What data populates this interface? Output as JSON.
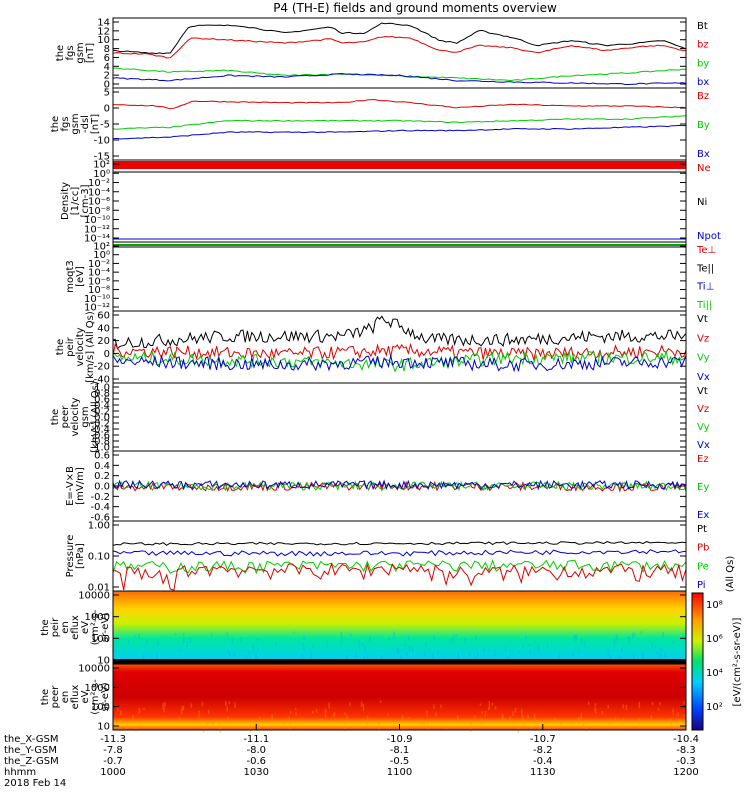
{
  "title": "P4 (TH-E) fields and ground moments overview",
  "colors": {
    "black": "#000000",
    "red": "#dd0000",
    "green": "#00cc00",
    "blue": "#0000cc"
  },
  "panels": [
    {
      "ylabel": [
        "the",
        "fgs",
        "gsm",
        "[nT]"
      ],
      "ticks": [
        "14",
        "12",
        "10",
        "8",
        "6",
        "4",
        "2",
        "0"
      ],
      "legend": [
        {
          "text": "Bt",
          "color": "black"
        },
        {
          "text": "bz",
          "color": "red"
        },
        {
          "text": "by",
          "color": "green"
        },
        {
          "text": "bx",
          "color": "blue"
        }
      ]
    },
    {
      "ylabel": [
        "the",
        "fgs",
        "gsm",
        "-dsl",
        "[nT]"
      ],
      "ticks": [
        "5",
        "0",
        "-5",
        "-10",
        "-15"
      ],
      "legend": [
        {
          "text": "Bz",
          "color": "red"
        },
        {
          "text": "By",
          "color": "green"
        },
        {
          "text": "Bx",
          "color": "blue"
        }
      ]
    },
    {
      "ylabel": [
        "Density",
        "[1/cc]",
        "[cm-3]"
      ],
      "ticks": [
        "10²",
        "10⁰",
        "10⁻²",
        "10⁻⁴",
        "10⁻⁶",
        "10⁻⁸",
        "10⁻¹⁰",
        "10⁻¹²",
        "10⁻¹⁴"
      ],
      "legend": [
        {
          "text": "Ne",
          "color": "red"
        },
        {
          "text": "Ni",
          "color": "black"
        },
        {
          "text": "Npot",
          "color": "blue"
        }
      ]
    },
    {
      "ylabel": [
        "moqt3",
        "[eV]"
      ],
      "ticks": [
        "10²",
        "10⁰",
        "10⁻²",
        "10⁻⁴",
        "10⁻⁶",
        "10⁻⁸",
        "10⁻¹⁰",
        "10⁻¹²"
      ],
      "legend": [
        {
          "text": "Te⊥",
          "color": "red"
        },
        {
          "text": "Te||",
          "color": "black"
        },
        {
          "text": "Ti⊥",
          "color": "blue"
        },
        {
          "text": "Ti||",
          "color": "green"
        }
      ]
    },
    {
      "ylabel": [
        "the",
        "peir",
        "velocity",
        "[km/s] (All Qs)"
      ],
      "ticks": [
        "60",
        "40",
        "20",
        "0",
        "-20",
        "-40"
      ],
      "legend": [
        {
          "text": "Vt",
          "color": "black"
        },
        {
          "text": "Vz",
          "color": "red"
        },
        {
          "text": "Vy",
          "color": "green"
        },
        {
          "text": "Vx",
          "color": "blue"
        }
      ]
    },
    {
      "ylabel": [
        "the",
        "peer",
        "velocity",
        "gsm",
        "[km/s] (All Qs)"
      ],
      "ticks": [
        "1.0",
        "0.8",
        "0.6",
        "0.4",
        "0.2",
        "0.0",
        "-0.2",
        "-0.4",
        "-0.6",
        "-0.8",
        "-1.0"
      ],
      "legend": [
        {
          "text": "Vt",
          "color": "black"
        },
        {
          "text": "Vz",
          "color": "red"
        },
        {
          "text": "Vy",
          "color": "green"
        },
        {
          "text": "Vx",
          "color": "blue"
        }
      ]
    },
    {
      "ylabel": [
        "E=-V×B",
        "[mV/m]"
      ],
      "ticks": [
        "0.6",
        "0.4",
        "0.2",
        "0.0",
        "-0.2",
        "-0.4",
        "-0.6"
      ],
      "legend": [
        {
          "text": "Ez",
          "color": "red"
        },
        {
          "text": "Ey",
          "color": "green"
        },
        {
          "text": "Ex",
          "color": "blue"
        }
      ]
    },
    {
      "ylabel": [
        "Pressure",
        "[nPa]"
      ],
      "ticks": [
        "1.00",
        "0.10",
        "0.01"
      ],
      "legend": [
        {
          "text": "Pt",
          "color": "black"
        },
        {
          "text": "Pb",
          "color": "red"
        },
        {
          "text": "Pe",
          "color": "green"
        },
        {
          "text": "Pi",
          "color": "blue"
        }
      ],
      "legend_note": "(All Qs)"
    },
    {
      "ylabel": [
        "the",
        "peir",
        "en",
        "eflux",
        "eV",
        "(cm²-s-",
        "sr-eV)"
      ],
      "ticks": [
        "10000",
        "1000",
        "100",
        "10"
      ]
    },
    {
      "ylabel": [
        "the",
        "peer",
        "en",
        "eflux",
        "eV",
        "(cm²-s-",
        "sr-eV)"
      ],
      "ticks": [
        "10000",
        "1000",
        "100",
        "10"
      ]
    }
  ],
  "colorbar": {
    "ticks": [
      "10⁸",
      "10⁶",
      "10⁴",
      "10²"
    ],
    "label": "[eV/(cm²-s-sr-eV)]"
  },
  "xaxis": {
    "rows": [
      {
        "label": "the_X-GSM",
        "values": [
          "-11.3",
          "-11.1",
          "-10.9",
          "-10.7",
          "-10.4"
        ]
      },
      {
        "label": "the_Y-GSM",
        "values": [
          "-7.8",
          "-8.0",
          "-8.1",
          "-8.2",
          "-8.3"
        ]
      },
      {
        "label": "the_Z-GSM",
        "values": [
          "-0.7",
          "-0.6",
          "-0.5",
          "-0.4",
          "-0.3"
        ]
      },
      {
        "label": "hhmm",
        "values": [
          "1000",
          "1030",
          "1100",
          "1130",
          "1200"
        ]
      }
    ],
    "date": "2018 Feb 14"
  },
  "chart_data": {
    "type": "line",
    "title": "P4 (TH-E) fields and ground moments overview",
    "x": [
      "1000",
      "1030",
      "1100",
      "1130",
      "1200"
    ],
    "series": [
      {
        "name": "Bt",
        "panel": 0,
        "ylim": [
          0,
          14
        ],
        "x": [
          0,
          0.06,
          0.1,
          0.13,
          0.14,
          0.22,
          0.3,
          0.38,
          0.4,
          0.44,
          0.47,
          0.52,
          0.57,
          0.6,
          0.64,
          0.7,
          0.74,
          0.8,
          0.86,
          0.92,
          0.96,
          1.0
        ],
        "values": [
          7.5,
          7.0,
          7.0,
          12,
          12.5,
          12.5,
          11,
          12.2,
          11,
          11,
          13,
          12.5,
          9.5,
          9,
          11.5,
          10,
          8.5,
          9.5,
          8.5,
          9,
          9.5,
          7.8
        ]
      },
      {
        "name": "bz",
        "panel": 0,
        "ylim": [
          0,
          14
        ],
        "x": [
          0,
          0.06,
          0.1,
          0.13,
          0.14,
          0.22,
          0.3,
          0.38,
          0.4,
          0.44,
          0.47,
          0.52,
          0.57,
          0.6,
          0.64,
          0.7,
          0.74,
          0.8,
          0.86,
          0.92,
          0.96,
          1.0
        ],
        "values": [
          7.0,
          6.8,
          6.0,
          9.5,
          10,
          9.5,
          9,
          9.8,
          9,
          9.2,
          10.3,
          10,
          7.5,
          7.2,
          8.5,
          8,
          7.0,
          8.5,
          7.5,
          8.3,
          8.5,
          7.4
        ]
      },
      {
        "name": "by",
        "panel": 0,
        "ylim": [
          0,
          14
        ],
        "x": [
          0,
          0.1,
          0.2,
          0.3,
          0.4,
          0.5,
          0.6,
          0.7,
          0.8,
          0.9,
          1.0
        ],
        "values": [
          4,
          3.2,
          3.5,
          2.5,
          2.8,
          2.4,
          2,
          1.5,
          2.5,
          3,
          3.8
        ]
      },
      {
        "name": "bx",
        "panel": 0,
        "ylim": [
          0,
          14
        ],
        "x": [
          0,
          0.1,
          0.2,
          0.3,
          0.4,
          0.5,
          0.6,
          0.7,
          0.8,
          0.9,
          1.0
        ],
        "values": [
          2,
          1.5,
          2.5,
          2.2,
          2.8,
          2.5,
          1.5,
          1.2,
          1,
          0.8,
          1
        ]
      },
      {
        "name": "Bz",
        "panel": 1,
        "ylim": [
          -17,
          5
        ],
        "x": [
          0,
          0.08,
          0.1,
          0.14,
          0.3,
          0.4,
          0.45,
          0.52,
          0.6,
          0.7,
          0.8,
          0.9,
          1.0
        ],
        "values": [
          0,
          -0.5,
          -1.5,
          1,
          0.5,
          0.5,
          1.5,
          0.5,
          -1,
          0,
          -0.5,
          -0.5,
          -1
        ]
      },
      {
        "name": "By",
        "panel": 1,
        "ylim": [
          -17,
          5
        ],
        "x": [
          0,
          0.1,
          0.2,
          0.3,
          0.4,
          0.5,
          0.6,
          0.7,
          0.8,
          0.9,
          1.0
        ],
        "values": [
          -7.5,
          -7,
          -5,
          -5,
          -5,
          -5,
          -5.5,
          -5,
          -4.5,
          -4.5,
          -3.5
        ]
      },
      {
        "name": "Bx",
        "panel": 1,
        "ylim": [
          -17,
          5
        ],
        "x": [
          0,
          0.1,
          0.2,
          0.3,
          0.4,
          0.5,
          0.6,
          0.7,
          0.8,
          0.9,
          1.0
        ],
        "values": [
          -10.5,
          -10,
          -8.5,
          -8.5,
          -8.5,
          -8,
          -8,
          -7.5,
          -7.5,
          -7,
          -6.5
        ]
      },
      {
        "name": "Vt",
        "panel": 4,
        "ylim": [
          -40,
          60
        ],
        "x": [
          0,
          0.2,
          0.4,
          0.45,
          0.47,
          0.55,
          0.7,
          0.85,
          1.0
        ],
        "values": [
          15,
          25,
          25,
          35,
          50,
          20,
          20,
          25,
          25
        ]
      },
      {
        "name": "Vz",
        "panel": 4,
        "ylim": [
          -40,
          60
        ],
        "x": [
          0,
          0.3,
          0.5,
          0.7,
          1.0
        ],
        "values": [
          5,
          0,
          5,
          0,
          5
        ]
      },
      {
        "name": "Vy",
        "panel": 4,
        "ylim": [
          -40,
          60
        ],
        "x": [
          0,
          0.3,
          0.5,
          0.7,
          1.0
        ],
        "values": [
          -5,
          -10,
          -15,
          -5,
          -5
        ]
      },
      {
        "name": "Vx",
        "panel": 4,
        "ylim": [
          -40,
          60
        ],
        "x": [
          0,
          0.3,
          0.5,
          0.7,
          1.0
        ],
        "values": [
          -10,
          -15,
          -10,
          -15,
          -10
        ]
      },
      {
        "name": "Ez",
        "panel": 6,
        "ylim": [
          -0.6,
          0.6
        ],
        "x": [
          0,
          0.5,
          1.0
        ],
        "values": [
          -0.02,
          0.0,
          -0.02
        ]
      },
      {
        "name": "Ey",
        "panel": 6,
        "ylim": [
          -0.6,
          0.6
        ],
        "x": [
          0,
          0.5,
          1.0
        ],
        "values": [
          0.0,
          0.0,
          0.0
        ]
      },
      {
        "name": "Ex",
        "panel": 6,
        "ylim": [
          -0.6,
          0.6
        ],
        "x": [
          0,
          0.5,
          1.0
        ],
        "values": [
          0.02,
          0.02,
          0.02
        ]
      },
      {
        "name": "Pt",
        "panel": 7,
        "ylim": [
          0.01,
          1.0
        ],
        "log": true,
        "x": [
          0,
          0.5,
          1.0
        ],
        "values": [
          0.22,
          0.23,
          0.24
        ]
      },
      {
        "name": "Pi",
        "panel": 7,
        "ylim": [
          0.01,
          1.0
        ],
        "log": true,
        "x": [
          0,
          0.5,
          1.0
        ],
        "values": [
          0.12,
          0.12,
          0.14
        ]
      },
      {
        "name": "Pe",
        "panel": 7,
        "ylim": [
          0.01,
          1.0
        ],
        "log": true,
        "x": [
          0,
          0.5,
          1.0
        ],
        "values": [
          0.05,
          0.055,
          0.055
        ]
      },
      {
        "name": "Pb",
        "panel": 7,
        "ylim": [
          0.01,
          1.0
        ],
        "log": true,
        "x": [
          0,
          0.08,
          0.1,
          0.14,
          0.3,
          0.45,
          0.5,
          0.6,
          0.8,
          1.0
        ],
        "values": [
          0.03,
          0.025,
          0.018,
          0.045,
          0.04,
          0.04,
          0.05,
          0.03,
          0.04,
          0.035
        ]
      }
    ]
  }
}
